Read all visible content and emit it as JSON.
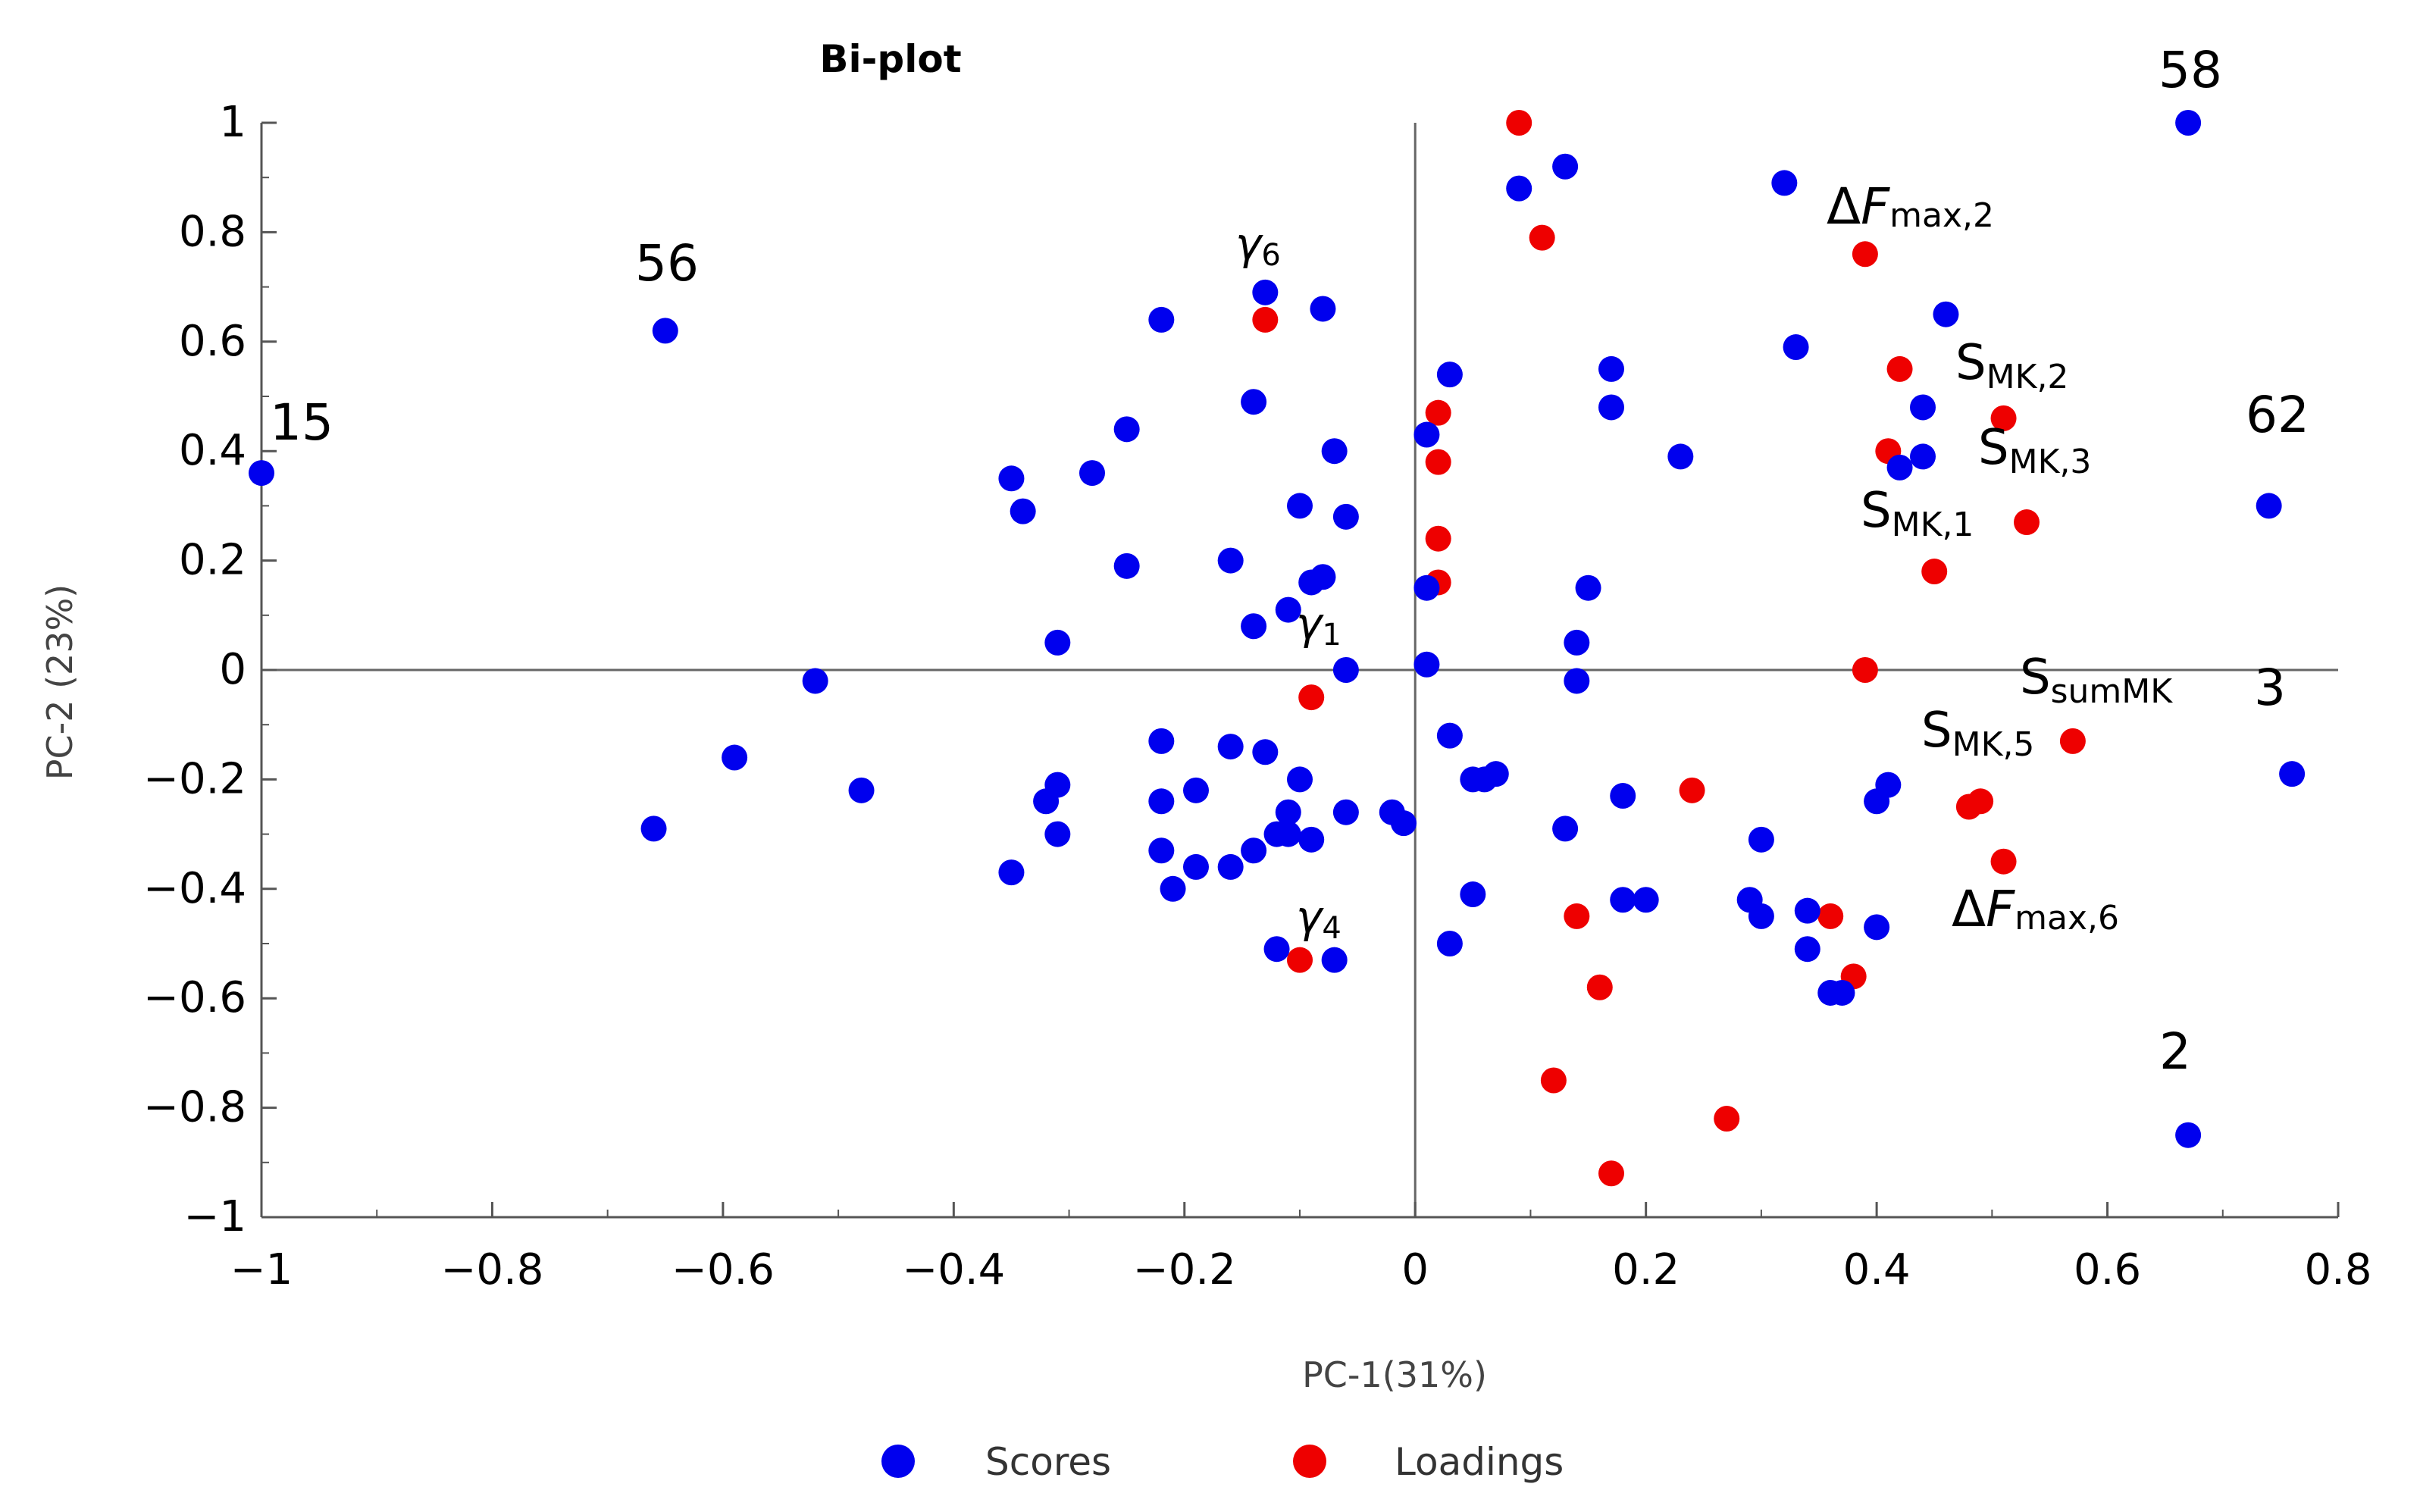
{
  "chart_data": {
    "type": "scatter",
    "title": "Bi-plot",
    "xlabel": "PC-1(31%)",
    "ylabel": "PC-2 (23%)",
    "xlim": [
      -1,
      0.8
    ],
    "ylim": [
      -1,
      1
    ],
    "x_ticks": [
      -1,
      -0.8,
      -0.6,
      -0.4,
      -0.2,
      0,
      0.2,
      0.4,
      0.6,
      0.8
    ],
    "x_tick_labels": [
      "−1",
      "−0.8",
      "−0.6",
      "−0.4",
      "−0.2",
      "0",
      "0.2",
      "0.4",
      "0.6",
      "0.8"
    ],
    "y_ticks": [
      1,
      0.8,
      0.6,
      0.4,
      0.2,
      0,
      -0.2,
      -0.4,
      -0.6,
      -0.8,
      -1
    ],
    "y_tick_labels": [
      "1",
      "0.8",
      "0.6",
      "0.4",
      "0.2",
      "0",
      "−0.2",
      "−0.4",
      "−0.6",
      "−0.8",
      "−1"
    ],
    "legend": {
      "placement": "bottom",
      "entries": [
        "Scores",
        "Loadings"
      ]
    },
    "colors": {
      "scores": "#0000ee",
      "loadings": "#ee0000",
      "axis": "#555555"
    },
    "series": [
      {
        "name": "Scores",
        "points": [
          [
            -1.0,
            0.36
          ],
          [
            -0.65,
            0.62
          ],
          [
            -0.66,
            -0.29
          ],
          [
            -0.59,
            -0.16
          ],
          [
            -0.52,
            -0.02
          ],
          [
            -0.48,
            -0.22
          ],
          [
            -0.35,
            0.35
          ],
          [
            -0.34,
            0.29
          ],
          [
            -0.35,
            -0.37
          ],
          [
            -0.31,
            0.05
          ],
          [
            -0.31,
            -0.21
          ],
          [
            -0.32,
            -0.24
          ],
          [
            -0.31,
            -0.3
          ],
          [
            -0.28,
            0.36
          ],
          [
            -0.25,
            0.44
          ],
          [
            -0.25,
            0.19
          ],
          [
            -0.22,
            0.64
          ],
          [
            -0.22,
            -0.13
          ],
          [
            -0.22,
            -0.24
          ],
          [
            -0.22,
            -0.33
          ],
          [
            -0.21,
            -0.4
          ],
          [
            -0.19,
            -0.22
          ],
          [
            -0.19,
            -0.36
          ],
          [
            -0.16,
            0.2
          ],
          [
            -0.16,
            -0.14
          ],
          [
            -0.16,
            -0.36
          ],
          [
            -0.14,
            0.49
          ],
          [
            -0.14,
            0.08
          ],
          [
            -0.13,
            0.69
          ],
          [
            -0.13,
            -0.15
          ],
          [
            -0.14,
            -0.33
          ],
          [
            -0.12,
            -0.3
          ],
          [
            -0.11,
            0.11
          ],
          [
            -0.11,
            -0.26
          ],
          [
            -0.11,
            -0.3
          ],
          [
            -0.12,
            -0.51
          ],
          [
            -0.1,
            0.3
          ],
          [
            -0.1,
            -0.2
          ],
          [
            -0.09,
            0.16
          ],
          [
            -0.09,
            -0.31
          ],
          [
            -0.08,
            0.66
          ],
          [
            -0.08,
            0.17
          ],
          [
            -0.07,
            0.4
          ],
          [
            -0.06,
            0.28
          ],
          [
            -0.06,
            0.0
          ],
          [
            -0.06,
            -0.26
          ],
          [
            -0.07,
            -0.53
          ],
          [
            -0.02,
            -0.26
          ],
          [
            -0.01,
            -0.28
          ],
          [
            0.01,
            0.43
          ],
          [
            0.01,
            0.15
          ],
          [
            0.01,
            0.01
          ],
          [
            0.03,
            0.54
          ],
          [
            0.03,
            -0.12
          ],
          [
            0.03,
            -0.5
          ],
          [
            0.05,
            -0.2
          ],
          [
            0.06,
            -0.2
          ],
          [
            0.07,
            -0.19
          ],
          [
            0.05,
            -0.41
          ],
          [
            0.09,
            0.88
          ],
          [
            0.13,
            0.92
          ],
          [
            0.14,
            0.05
          ],
          [
            0.14,
            -0.02
          ],
          [
            0.15,
            0.15
          ],
          [
            0.13,
            -0.29
          ],
          [
            0.17,
            0.55
          ],
          [
            0.17,
            0.48
          ],
          [
            0.18,
            -0.23
          ],
          [
            0.18,
            -0.42
          ],
          [
            0.2,
            -0.42
          ],
          [
            0.23,
            0.39
          ],
          [
            0.29,
            -0.42
          ],
          [
            0.3,
            -0.45
          ],
          [
            0.3,
            -0.31
          ],
          [
            0.32,
            0.89
          ],
          [
            0.33,
            0.59
          ],
          [
            0.34,
            -0.44
          ],
          [
            0.34,
            -0.51
          ],
          [
            0.36,
            -0.59
          ],
          [
            0.37,
            -0.59
          ],
          [
            0.4,
            -0.24
          ],
          [
            0.41,
            -0.21
          ],
          [
            0.4,
            -0.47
          ],
          [
            0.42,
            0.37
          ],
          [
            0.44,
            0.48
          ],
          [
            0.44,
            0.39
          ],
          [
            0.46,
            0.65
          ],
          [
            0.67,
            1.0
          ],
          [
            0.74,
            0.3
          ],
          [
            0.76,
            -0.19
          ],
          [
            0.67,
            -0.85
          ]
        ]
      },
      {
        "name": "Loadings",
        "points": [
          [
            0.09,
            1.0
          ],
          [
            0.11,
            0.79
          ],
          [
            0.39,
            0.76
          ],
          [
            -0.13,
            0.64
          ],
          [
            0.42,
            0.55
          ],
          [
            0.51,
            0.46
          ],
          [
            0.02,
            0.47
          ],
          [
            0.41,
            0.4
          ],
          [
            0.02,
            0.38
          ],
          [
            0.53,
            0.27
          ],
          [
            0.02,
            0.24
          ],
          [
            0.02,
            0.16
          ],
          [
            0.45,
            0.18
          ],
          [
            0.39,
            0.0
          ],
          [
            -0.09,
            -0.05
          ],
          [
            0.57,
            -0.13
          ],
          [
            0.24,
            -0.22
          ],
          [
            0.49,
            -0.24
          ],
          [
            0.48,
            -0.25
          ],
          [
            0.51,
            -0.35
          ],
          [
            0.36,
            -0.45
          ],
          [
            0.14,
            -0.45
          ],
          [
            0.38,
            -0.56
          ],
          [
            0.16,
            -0.58
          ],
          [
            -0.1,
            -0.53
          ],
          [
            0.12,
            -0.75
          ],
          [
            0.27,
            -0.82
          ],
          [
            0.17,
            -0.92
          ]
        ]
      }
    ],
    "annotations": [
      {
        "text": "58",
        "x": 0.67,
        "y": 1.0
      },
      {
        "text": "56",
        "x": -0.65,
        "y": 0.62
      },
      {
        "text": "15",
        "x": -1.0,
        "y": 0.36
      },
      {
        "text": "62",
        "x": 0.74,
        "y": 0.3
      },
      {
        "text": "3",
        "x": 0.76,
        "y": -0.19
      },
      {
        "text": "2",
        "x": 0.67,
        "y": -0.85
      },
      {
        "text": "ΔFmax,2",
        "x": 0.39,
        "y": 0.76
      },
      {
        "text": "SMK,2",
        "x": 0.51,
        "y": 0.46
      },
      {
        "text": "SMK,3",
        "x": 0.53,
        "y": 0.4
      },
      {
        "text": "SMK,1",
        "x": 0.45,
        "y": 0.27
      },
      {
        "text": "SsumMK",
        "x": 0.57,
        "y": -0.03
      },
      {
        "text": "SMK,5",
        "x": 0.49,
        "y": -0.13
      },
      {
        "text": "ΔFmax,6",
        "x": 0.51,
        "y": -0.45
      },
      {
        "text": "γ6",
        "x": -0.13,
        "y": 0.64
      },
      {
        "text": "γ1",
        "x": -0.09,
        "y": -0.05
      },
      {
        "text": "γ4",
        "x": -0.1,
        "y": -0.53
      }
    ],
    "label_parts": {
      "dfmax2": {
        "main": "Δ",
        "italic": "F",
        "sub": "max,2"
      },
      "dfmax6": {
        "main": "Δ",
        "italic": "F",
        "sub": "max,6"
      },
      "smk2": {
        "main": "S",
        "sub": "MK,2"
      },
      "smk3": {
        "main": "S",
        "sub": "MK,3"
      },
      "smk1": {
        "main": "S",
        "sub": "MK,1"
      },
      "ssummk": {
        "main": "S",
        "sub": "sumMK"
      },
      "smk5": {
        "main": "S",
        "sub": "MK,5"
      },
      "gamma6": {
        "main": "γ",
        "sub": "6"
      },
      "gamma1": {
        "main": "γ",
        "sub": "1"
      },
      "gamma4": {
        "main": "γ",
        "sub": "4"
      },
      "n58": "58",
      "n56": "56",
      "n15": "15",
      "n62": "62",
      "n3": "3",
      "n2": "2"
    }
  }
}
